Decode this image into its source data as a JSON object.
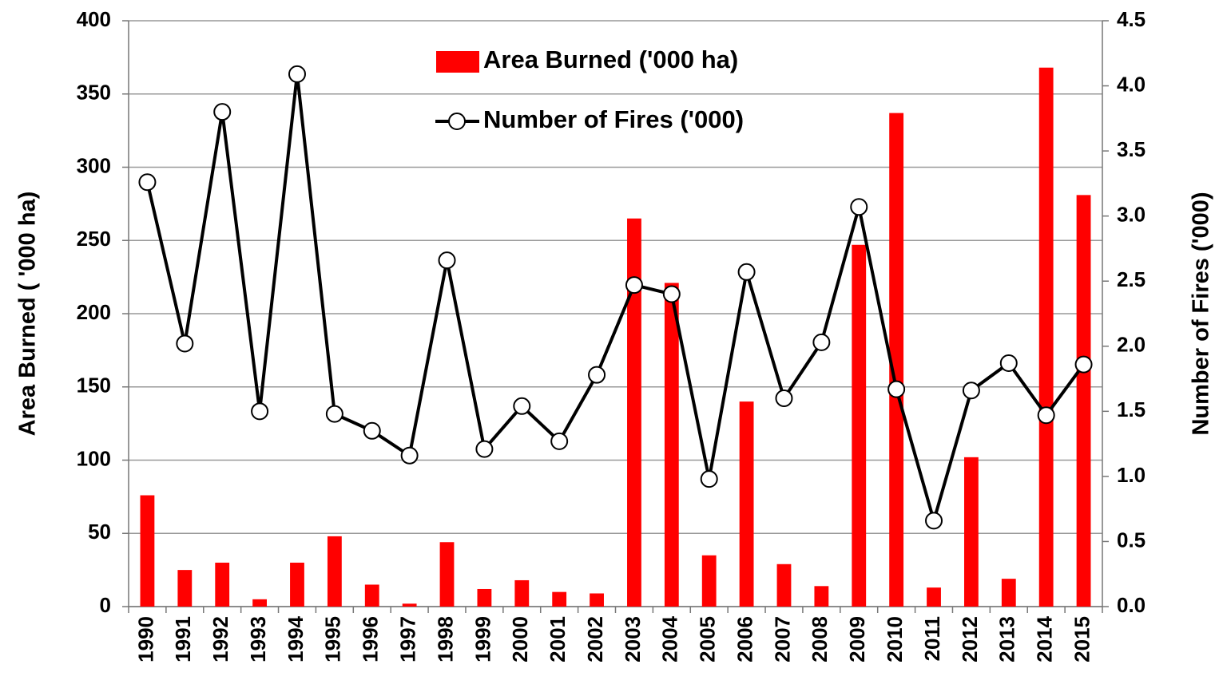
{
  "chart_data": {
    "type": "bar_line",
    "y_label": "Area Burned ( '000 ha)",
    "y2_label": "Number of Fires ('000)",
    "categories": [
      "1990",
      "1991",
      "1992",
      "1993",
      "1994",
      "1995",
      "1996",
      "1997",
      "1998",
      "1999",
      "2000",
      "2001",
      "2002",
      "2003",
      "2004",
      "2005",
      "2006",
      "2007",
      "2008",
      "2009",
      "2010",
      "2011",
      "2012",
      "2013",
      "2014",
      "2015"
    ],
    "series": [
      {
        "name": "Area Burned ('000 ha)",
        "type": "bar",
        "color": "#ff0000",
        "values": [
          76,
          25,
          30,
          5,
          30,
          48,
          15,
          2,
          44,
          12,
          18,
          10,
          9,
          265,
          221,
          35,
          140,
          29,
          14,
          247,
          337,
          13,
          102,
          19,
          368,
          281
        ]
      },
      {
        "name": "Number of Fires ('000)",
        "type": "line",
        "axis": "y2",
        "color": "#000000",
        "values": [
          3.26,
          2.02,
          3.8,
          1.5,
          4.09,
          1.48,
          1.35,
          1.16,
          2.66,
          1.21,
          1.54,
          1.27,
          1.78,
          2.47,
          2.4,
          0.98,
          2.57,
          1.6,
          2.03,
          3.07,
          1.67,
          0.66,
          1.66,
          1.87,
          1.47,
          1.86
        ]
      }
    ],
    "ylim": [
      0,
      400
    ],
    "yticks": [
      0,
      50,
      100,
      150,
      200,
      250,
      300,
      350,
      400
    ],
    "y2lim": [
      0,
      4.5
    ],
    "y2ticks": [
      {
        "value": 0,
        "label": "0.0"
      },
      0.5,
      {
        "value": 1,
        "label": "1.0"
      },
      1.5,
      {
        "value": 2,
        "label": "2.0"
      },
      2.5,
      {
        "value": 3,
        "label": "3.0"
      },
      3.5,
      {
        "value": 4,
        "label": "4.0"
      },
      4.5
    ],
    "grid": true
  }
}
